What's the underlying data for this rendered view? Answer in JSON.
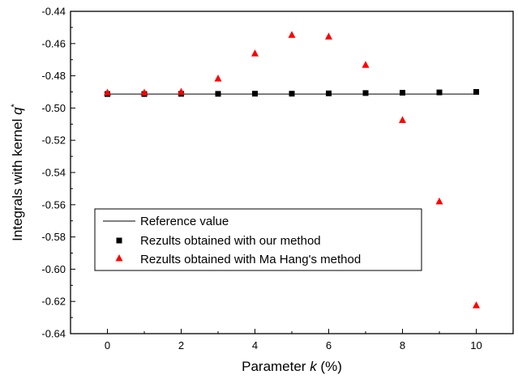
{
  "chart_data": {
    "type": "scatter",
    "xlabel": {
      "prefix": "Parameter ",
      "var": "k",
      "suffix": " (%)"
    },
    "ylabel": {
      "prefix": "Integrals with kernel ",
      "var": "q",
      "sup": "*"
    },
    "xlim": [
      -1,
      11
    ],
    "ylim": [
      -0.64,
      -0.44
    ],
    "xticks": [
      0,
      2,
      4,
      6,
      8,
      10
    ],
    "xtick_labels": [
      "0",
      "2",
      "4",
      "6",
      "8",
      "10"
    ],
    "yticks": [
      -0.64,
      -0.62,
      -0.6,
      -0.58,
      -0.56,
      -0.54,
      -0.52,
      -0.5,
      -0.48,
      -0.46,
      -0.44
    ],
    "ytick_labels": [
      "-0.64",
      "-0.62",
      "-0.60",
      "-0.58",
      "-0.56",
      "-0.54",
      "-0.52",
      "-0.50",
      "-0.48",
      "-0.46",
      "-0.44"
    ],
    "grid": false,
    "legend_position": "lower-left",
    "series": [
      {
        "name": "Reference value",
        "kind": "line",
        "color": "#000000",
        "x": [
          0,
          10
        ],
        "y": [
          -0.4913,
          -0.4913
        ]
      },
      {
        "name": "Rezults obtained with our method",
        "kind": "square",
        "color": "#000000",
        "x": [
          0,
          1,
          2,
          3,
          4,
          5,
          6,
          7,
          8,
          9,
          10
        ],
        "y": [
          -0.4913,
          -0.4913,
          -0.4912,
          -0.4912,
          -0.4911,
          -0.4911,
          -0.4909,
          -0.4907,
          -0.4905,
          -0.4903,
          -0.49
        ]
      },
      {
        "name": "Rezults obtained with Ma Hang's method",
        "kind": "triangle",
        "color": "#ff0000",
        "x": [
          0,
          1,
          2,
          3,
          4,
          5,
          6,
          7,
          8,
          9,
          10
        ],
        "y": [
          -0.4905,
          -0.4905,
          -0.49,
          -0.4818,
          -0.4662,
          -0.4547,
          -0.4557,
          -0.4733,
          -0.5075,
          -0.558,
          -0.6225
        ]
      }
    ]
  }
}
